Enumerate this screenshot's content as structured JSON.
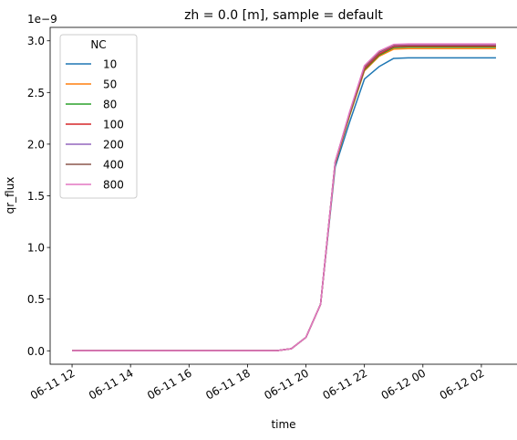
{
  "chart_data": {
    "type": "line",
    "title": "zh = 0.0 [m], sample = default",
    "xlabel": "time",
    "ylabel": "qr_flux",
    "y_offset_label": "1e−9",
    "ylim": [
      -0.13,
      3.13
    ],
    "xlim": [
      -0.75,
      15.25
    ],
    "yticks": [
      0.0,
      0.5,
      1.0,
      1.5,
      2.0,
      2.5,
      3.0
    ],
    "ytick_labels": [
      "0.0",
      "0.5",
      "1.0",
      "1.5",
      "2.0",
      "2.5",
      "3.0"
    ],
    "xticks": [
      0,
      2,
      4,
      6,
      8,
      10,
      12,
      14
    ],
    "xtick_labels": [
      "06-11 12",
      "06-11 14",
      "06-11 16",
      "06-11 18",
      "06-11 20",
      "06-11 22",
      "06-12 00",
      "06-12 02"
    ],
    "legend_title": "NC",
    "legend_position": "upper-left",
    "x": [
      0,
      0.5,
      1,
      1.5,
      2,
      2.5,
      3,
      3.5,
      4,
      4.5,
      5,
      5.5,
      6,
      6.5,
      7,
      7.5,
      8,
      8.5,
      9,
      9.5,
      10,
      10.5,
      11,
      11.5,
      12,
      12.5,
      13,
      13.5,
      14,
      14.5
    ],
    "series": [
      {
        "name": "10",
        "color": "#1f77b4",
        "values": [
          0.001,
          0.001,
          0.001,
          0.001,
          0.001,
          0.001,
          0.001,
          0.001,
          0.001,
          0.001,
          0.001,
          0.001,
          0.001,
          0.001,
          0.001,
          0.02,
          0.13,
          0.45,
          1.78,
          2.22,
          2.63,
          2.75,
          2.83,
          2.835,
          2.835,
          2.835,
          2.835,
          2.835,
          2.835,
          2.835
        ]
      },
      {
        "name": "50",
        "color": "#ff7f0e",
        "values": [
          0.001,
          0.001,
          0.001,
          0.001,
          0.001,
          0.001,
          0.001,
          0.001,
          0.001,
          0.001,
          0.001,
          0.001,
          0.001,
          0.001,
          0.001,
          0.02,
          0.13,
          0.45,
          1.81,
          2.28,
          2.71,
          2.85,
          2.92,
          2.925,
          2.925,
          2.925,
          2.925,
          2.925,
          2.925,
          2.925
        ]
      },
      {
        "name": "80",
        "color": "#2ca02c",
        "values": [
          0.001,
          0.001,
          0.001,
          0.001,
          0.001,
          0.001,
          0.001,
          0.001,
          0.001,
          0.001,
          0.001,
          0.001,
          0.001,
          0.001,
          0.001,
          0.02,
          0.13,
          0.45,
          1.82,
          2.29,
          2.72,
          2.86,
          2.935,
          2.94,
          2.94,
          2.94,
          2.94,
          2.94,
          2.94,
          2.94
        ]
      },
      {
        "name": "100",
        "color": "#d62728",
        "values": [
          0.001,
          0.001,
          0.001,
          0.001,
          0.001,
          0.001,
          0.001,
          0.001,
          0.001,
          0.001,
          0.001,
          0.001,
          0.001,
          0.001,
          0.001,
          0.02,
          0.13,
          0.45,
          1.82,
          2.3,
          2.73,
          2.87,
          2.945,
          2.95,
          2.95,
          2.95,
          2.95,
          2.95,
          2.95,
          2.95
        ]
      },
      {
        "name": "200",
        "color": "#9467bd",
        "values": [
          0.001,
          0.001,
          0.001,
          0.001,
          0.001,
          0.001,
          0.001,
          0.001,
          0.001,
          0.001,
          0.001,
          0.001,
          0.001,
          0.001,
          0.001,
          0.02,
          0.13,
          0.45,
          1.83,
          2.31,
          2.745,
          2.885,
          2.955,
          2.96,
          2.96,
          2.96,
          2.96,
          2.96,
          2.96,
          2.96
        ]
      },
      {
        "name": "400",
        "color": "#8c564b",
        "values": [
          0.001,
          0.001,
          0.001,
          0.001,
          0.001,
          0.001,
          0.001,
          0.001,
          0.001,
          0.001,
          0.001,
          0.001,
          0.001,
          0.001,
          0.001,
          0.02,
          0.13,
          0.45,
          1.83,
          2.31,
          2.75,
          2.89,
          2.96,
          2.965,
          2.965,
          2.965,
          2.965,
          2.965,
          2.965,
          2.965
        ]
      },
      {
        "name": "800",
        "color": "#e377c2",
        "values": [
          0.001,
          0.001,
          0.001,
          0.001,
          0.001,
          0.001,
          0.001,
          0.001,
          0.001,
          0.001,
          0.001,
          0.001,
          0.001,
          0.001,
          0.001,
          0.02,
          0.13,
          0.45,
          1.83,
          2.32,
          2.76,
          2.9,
          2.965,
          2.97,
          2.97,
          2.97,
          2.97,
          2.97,
          2.97,
          2.97
        ]
      }
    ]
  }
}
